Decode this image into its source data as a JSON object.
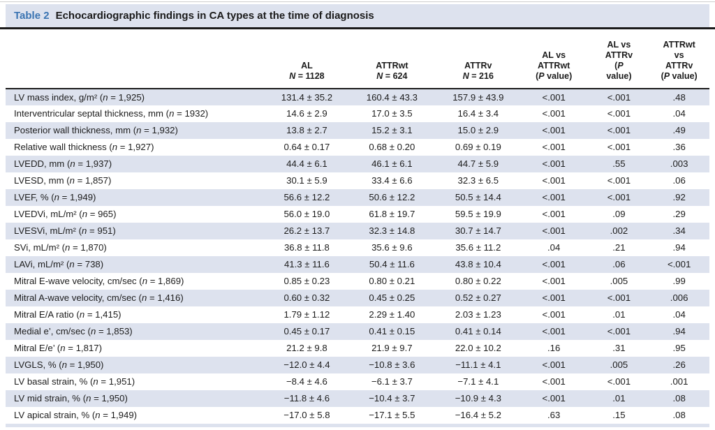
{
  "caption": {
    "label": "Table 2",
    "title": "Echocardiographic findings in CA types at the time of diagnosis"
  },
  "colors": {
    "accent": "#3a74b2",
    "shade": "#dde2ee",
    "rule": "#1a1a1a"
  },
  "table": {
    "columns": [
      {
        "key": "label",
        "header": ""
      },
      {
        "key": "al",
        "header": "AL\nN = 1128"
      },
      {
        "key": "attrwt",
        "header": "ATTRwt\nN = 624"
      },
      {
        "key": "attrv",
        "header": "ATTRv\nN = 216"
      },
      {
        "key": "p_al_attrwt",
        "header": "AL vs\nATTRwt\n(P value)"
      },
      {
        "key": "p_al_attrv",
        "header": "AL vs\nATTRv\n(P\nvalue)"
      },
      {
        "key": "p_attrwt_attrv",
        "header": "ATTRwt\nvs\nATTRv\n(P value)"
      }
    ],
    "rows": [
      {
        "label": "LV mass index, g/m² (n = 1,925)",
        "al": "131.4 ± 35.2",
        "attrwt": "160.4 ± 43.3",
        "attrv": "157.9 ± 43.9",
        "p_al_attrwt": "<.001",
        "p_al_attrv": "<.001",
        "p_attrwt_attrv": ".48"
      },
      {
        "label": "Interventricular septal thickness, mm (n = 1932)",
        "al": "14.6 ± 2.9",
        "attrwt": "17.0 ± 3.5",
        "attrv": "16.4 ± 3.4",
        "p_al_attrwt": "<.001",
        "p_al_attrv": "<.001",
        "p_attrwt_attrv": ".04"
      },
      {
        "label": "Posterior wall thickness, mm (n = 1,932)",
        "al": "13.8 ± 2.7",
        "attrwt": "15.2 ± 3.1",
        "attrv": "15.0 ± 2.9",
        "p_al_attrwt": "<.001",
        "p_al_attrv": "<.001",
        "p_attrwt_attrv": ".49"
      },
      {
        "label": "Relative wall thickness (n = 1,927)",
        "al": "0.64 ± 0.17",
        "attrwt": "0.68 ± 0.20",
        "attrv": "0.69 ± 0.19",
        "p_al_attrwt": "<.001",
        "p_al_attrv": "<.001",
        "p_attrwt_attrv": ".36"
      },
      {
        "label": "LVEDD, mm (n = 1,937)",
        "al": "44.4 ± 6.1",
        "attrwt": "46.1 ± 6.1",
        "attrv": "44.7 ± 5.9",
        "p_al_attrwt": "<.001",
        "p_al_attrv": ".55",
        "p_attrwt_attrv": ".003"
      },
      {
        "label": "LVESD, mm (n = 1,857)",
        "al": "30.1 ± 5.9",
        "attrwt": "33.4 ± 6.6",
        "attrv": "32.3 ± 6.5",
        "p_al_attrwt": "<.001",
        "p_al_attrv": "<.001",
        "p_attrwt_attrv": ".06"
      },
      {
        "label": "LVEF, % (n = 1,949)",
        "al": "56.6 ± 12.2",
        "attrwt": "50.6 ± 12.2",
        "attrv": "50.5 ± 14.4",
        "p_al_attrwt": "<.001",
        "p_al_attrv": "<.001",
        "p_attrwt_attrv": ".92"
      },
      {
        "label": "LVEDVi, mL/m² (n = 965)",
        "al": "56.0 ± 19.0",
        "attrwt": "61.8 ± 19.7",
        "attrv": "59.5 ± 19.9",
        "p_al_attrwt": "<.001",
        "p_al_attrv": ".09",
        "p_attrwt_attrv": ".29"
      },
      {
        "label": "LVESVi, mL/m² (n = 951)",
        "al": "26.2 ± 13.7",
        "attrwt": "32.3 ± 14.8",
        "attrv": "30.7 ± 14.7",
        "p_al_attrwt": "<.001",
        "p_al_attrv": ".002",
        "p_attrwt_attrv": ".34"
      },
      {
        "label": "SVi, mL/m² (n = 1,870)",
        "al": "36.8 ± 11.8",
        "attrwt": "35.6 ± 9.6",
        "attrv": "35.6 ± 11.2",
        "p_al_attrwt": ".04",
        "p_al_attrv": ".21",
        "p_attrwt_attrv": ".94"
      },
      {
        "label": "LAVi, mL/m² (n = 738)",
        "al": "41.3 ± 11.6",
        "attrwt": "50.4 ± 11.6",
        "attrv": "43.8 ± 10.4",
        "p_al_attrwt": "<.001",
        "p_al_attrv": ".06",
        "p_attrwt_attrv": "<.001"
      },
      {
        "label": "Mitral E-wave velocity, cm/sec (n = 1,869)",
        "al": "0.85 ± 0.23",
        "attrwt": "0.80 ± 0.21",
        "attrv": "0.80 ± 0.22",
        "p_al_attrwt": "<.001",
        "p_al_attrv": ".005",
        "p_attrwt_attrv": ".99"
      },
      {
        "label": "Mitral A-wave velocity, cm/sec (n = 1,416)",
        "al": "0.60 ± 0.32",
        "attrwt": "0.45 ± 0.25",
        "attrv": "0.52 ± 0.27",
        "p_al_attrwt": "<.001",
        "p_al_attrv": "<.001",
        "p_attrwt_attrv": ".006"
      },
      {
        "label": "Mitral E/A ratio (n = 1,415)",
        "al": "1.79 ± 1.12",
        "attrwt": "2.29 ± 1.40",
        "attrv": "2.03 ± 1.23",
        "p_al_attrwt": "<.001",
        "p_al_attrv": ".01",
        "p_attrwt_attrv": ".04"
      },
      {
        "label": "Medial e’, cm/sec (n = 1,853)",
        "al": "0.45 ± 0.17",
        "attrwt": "0.41 ± 0.15",
        "attrv": "0.41 ± 0.14",
        "p_al_attrwt": "<.001",
        "p_al_attrv": "<.001",
        "p_attrwt_attrv": ".94"
      },
      {
        "label": "Mitral E/e’ (n = 1,817)",
        "al": "21.2 ± 9.8",
        "attrwt": "21.9 ± 9.7",
        "attrv": "22.0 ± 10.2",
        "p_al_attrwt": ".16",
        "p_al_attrv": ".31",
        "p_attrwt_attrv": ".95"
      },
      {
        "label": "LVGLS, % (n = 1,950)",
        "al": "−12.0 ± 4.4",
        "attrwt": "−10.8 ± 3.6",
        "attrv": "−11.1 ± 4.1",
        "p_al_attrwt": "<.001",
        "p_al_attrv": ".005",
        "p_attrwt_attrv": ".26"
      },
      {
        "label": "LV basal strain, % (n = 1,951)",
        "al": "−8.4 ± 4.6",
        "attrwt": "−6.1 ± 3.7",
        "attrv": "−7.1 ± 4.1",
        "p_al_attrwt": "<.001",
        "p_al_attrv": "<.001",
        "p_attrwt_attrv": ".001"
      },
      {
        "label": "LV mid strain, % (n = 1,950)",
        "al": "−11.8 ± 4.6",
        "attrwt": "−10.4 ± 3.7",
        "attrv": "−10.9 ± 4.3",
        "p_al_attrwt": "<.001",
        "p_al_attrv": ".01",
        "p_attrwt_attrv": ".08"
      },
      {
        "label": "LV apical strain, % (n = 1,949)",
        "al": "−17.0 ± 5.8",
        "attrwt": "−17.1 ± 5.5",
        "attrv": "−16.4 ± 5.2",
        "p_al_attrwt": ".63",
        "p_al_attrv": ".15",
        "p_attrwt_attrv": ".08"
      }
    ]
  }
}
